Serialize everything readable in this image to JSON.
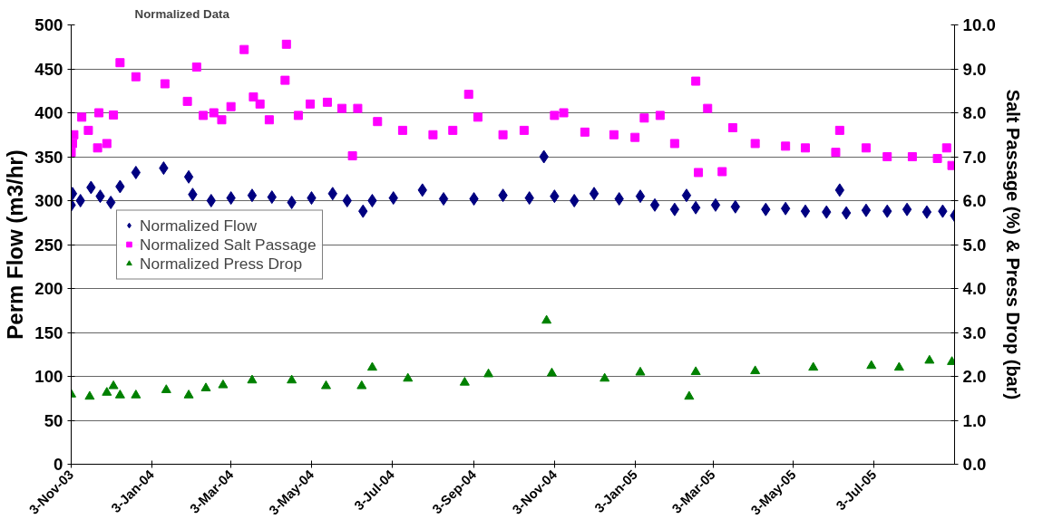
{
  "chart_data": {
    "type": "scatter",
    "title": "Normalized Data",
    "ylabel": "Perm Flow (m3/hr)",
    "y2label": "Salt Passage (%) & Press Drop (bar)",
    "xlim": [
      "2003-11-03",
      "2005-09-02"
    ],
    "xticks": [
      {
        "value": "2003-11-03",
        "label": "3-Nov-03"
      },
      {
        "value": "2004-01-03",
        "label": "3-Jan-04"
      },
      {
        "value": "2004-03-03",
        "label": "3-Mar-04"
      },
      {
        "value": "2004-05-03",
        "label": "3-May-04"
      },
      {
        "value": "2004-07-03",
        "label": "3-Jul-04"
      },
      {
        "value": "2004-09-03",
        "label": "3-Sep-04"
      },
      {
        "value": "2004-11-03",
        "label": "3-Nov-04"
      },
      {
        "value": "2005-01-03",
        "label": "3-Jan-05"
      },
      {
        "value": "2005-03-03",
        "label": "3-Mar-05"
      },
      {
        "value": "2005-05-03",
        "label": "3-May-05"
      },
      {
        "value": "2005-07-03",
        "label": "3-Jul-05"
      }
    ],
    "ylim": [
      0,
      500
    ],
    "yticks": [
      0,
      50,
      100,
      150,
      200,
      250,
      300,
      350,
      400,
      450,
      500
    ],
    "y2lim": [
      0,
      10
    ],
    "y2ticks": [
      {
        "value": 0,
        "label": "0.0"
      },
      {
        "value": 1,
        "label": "1.0"
      },
      {
        "value": 2,
        "label": "2.0"
      },
      {
        "value": 3,
        "label": "3.0"
      },
      {
        "value": 4,
        "label": "4.0"
      },
      {
        "value": 5,
        "label": "5.0"
      },
      {
        "value": 6,
        "label": "6.0"
      },
      {
        "value": 7,
        "label": "7.0"
      },
      {
        "value": 8,
        "label": "8.0"
      },
      {
        "value": 9,
        "label": "9.0"
      },
      {
        "value": 10,
        "label": "10.0"
      }
    ],
    "grid": "y",
    "legend": "left",
    "series": [
      {
        "name": "Normalized Flow",
        "color": "#000080",
        "marker": "diamond",
        "x": [
          "2003-11-03",
          "2003-11-04",
          "2003-11-10",
          "2003-11-18",
          "2003-11-25",
          "2003-12-03",
          "2003-12-10",
          "2003-12-22",
          "2004-01-12",
          "2004-01-31",
          "2004-02-03",
          "2004-02-17",
          "2004-03-03",
          "2004-03-19",
          "2004-04-03",
          "2004-04-18",
          "2004-05-03",
          "2004-05-19",
          "2004-05-30",
          "2004-06-11",
          "2004-06-18",
          "2004-07-04",
          "2004-07-26",
          "2004-08-11",
          "2004-09-03",
          "2004-09-25",
          "2004-10-15",
          "2004-10-26",
          "2004-11-03",
          "2004-11-18",
          "2004-12-03",
          "2004-12-22",
          "2005-01-07",
          "2005-01-18",
          "2005-02-02",
          "2005-02-11",
          "2005-02-18",
          "2005-03-05",
          "2005-03-20",
          "2005-04-12",
          "2005-04-27",
          "2005-05-12",
          "2005-05-28",
          "2005-06-07",
          "2005-06-12",
          "2005-06-27",
          "2005-07-13",
          "2005-07-28",
          "2005-08-12",
          "2005-08-24",
          "2005-09-02"
        ],
        "values": [
          295,
          308,
          300,
          315,
          305,
          298,
          316,
          332,
          337,
          327,
          307,
          300,
          303,
          306,
          304,
          298,
          303,
          308,
          300,
          288,
          300,
          303,
          312,
          302,
          302,
          306,
          303,
          350,
          305,
          300,
          308,
          302,
          305,
          295,
          290,
          306,
          292,
          295,
          293,
          290,
          291,
          288,
          287,
          312,
          286,
          289,
          288,
          290,
          287,
          288,
          283
        ]
      },
      {
        "name": "Normalized Salt Passage",
        "color": "#ff00ff",
        "marker": "square",
        "axis": "y2",
        "x": [
          "2003-11-03",
          "2003-11-04",
          "2003-11-05",
          "2003-11-11",
          "2003-11-16",
          "2003-11-23",
          "2003-11-24",
          "2003-11-30",
          "2003-12-05",
          "2003-12-10",
          "2003-12-22",
          "2004-01-13",
          "2004-01-30",
          "2004-02-06",
          "2004-02-11",
          "2004-02-19",
          "2004-02-25",
          "2004-03-03",
          "2004-03-13",
          "2004-03-20",
          "2004-03-25",
          "2004-04-01",
          "2004-04-13",
          "2004-04-14",
          "2004-04-23",
          "2004-05-02",
          "2004-05-15",
          "2004-05-26",
          "2004-06-03",
          "2004-06-07",
          "2004-06-22",
          "2004-07-11",
          "2004-08-03",
          "2004-08-18",
          "2004-08-30",
          "2004-09-06",
          "2004-09-25",
          "2004-10-11",
          "2004-11-03",
          "2004-11-10",
          "2004-11-26",
          "2004-12-18",
          "2005-01-03",
          "2005-01-10",
          "2005-01-22",
          "2005-02-02",
          "2005-02-18",
          "2005-02-20",
          "2005-02-27",
          "2005-03-10",
          "2005-03-18",
          "2005-04-04",
          "2005-04-27",
          "2005-05-12",
          "2005-06-04",
          "2005-06-07",
          "2005-06-27",
          "2005-07-13",
          "2005-08-01",
          "2005-08-20",
          "2005-08-27",
          "2005-08-31"
        ],
        "values": [
          7.1,
          7.3,
          7.5,
          7.9,
          7.6,
          7.2,
          8.0,
          7.3,
          7.95,
          9.14,
          8.82,
          8.66,
          8.26,
          9.04,
          7.94,
          8.0,
          7.84,
          8.14,
          9.44,
          8.36,
          8.2,
          7.84,
          8.74,
          9.56,
          7.94,
          8.2,
          8.24,
          8.1,
          7.02,
          8.1,
          7.8,
          7.6,
          7.5,
          7.6,
          8.42,
          7.9,
          7.5,
          7.6,
          7.94,
          8.0,
          7.56,
          7.5,
          7.44,
          7.88,
          7.94,
          7.3,
          8.72,
          6.64,
          8.1,
          6.66,
          7.66,
          7.3,
          7.24,
          7.2,
          7.1,
          7.6,
          7.2,
          7.0,
          7.0,
          6.96,
          7.2,
          6.8
        ]
      },
      {
        "name": "Normalized Press Drop",
        "color": "#008000",
        "marker": "triangle",
        "axis": "y2",
        "x": [
          "2003-11-03",
          "2003-11-17",
          "2003-11-30",
          "2003-12-05",
          "2003-12-10",
          "2003-12-22",
          "2004-01-14",
          "2004-01-31",
          "2004-02-13",
          "2004-02-26",
          "2004-03-19",
          "2004-04-18",
          "2004-05-14",
          "2004-06-10",
          "2004-06-18",
          "2004-07-15",
          "2004-08-27",
          "2004-09-14",
          "2004-10-28",
          "2004-11-01",
          "2004-12-11",
          "2005-01-07",
          "2005-02-13",
          "2005-02-18",
          "2005-04-04",
          "2005-05-18",
          "2005-07-01",
          "2005-07-22",
          "2005-08-14",
          "2005-08-31"
        ],
        "values": [
          1.59,
          1.54,
          1.63,
          1.78,
          1.57,
          1.57,
          1.69,
          1.57,
          1.73,
          1.8,
          1.91,
          1.91,
          1.78,
          1.78,
          2.2,
          1.95,
          1.86,
          2.05,
          3.27,
          2.07,
          1.95,
          2.09,
          1.54,
          2.1,
          2.12,
          2.2,
          2.24,
          2.2,
          2.36,
          2.33
        ]
      }
    ]
  }
}
